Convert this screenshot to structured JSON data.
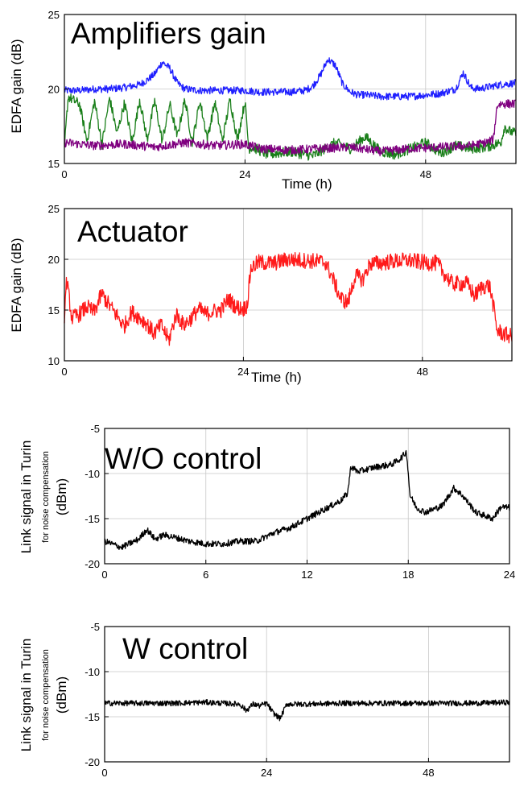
{
  "chart_data": [
    {
      "type": "line",
      "title": "Amplifiers gain",
      "xlabel": "Time (h)",
      "ylabel": "EDFA gain (dB)",
      "xlim": [
        0,
        60
      ],
      "ylim": [
        15,
        25
      ],
      "xticks": [
        0,
        24,
        48
      ],
      "yticks": [
        15,
        20,
        25
      ],
      "grid": true,
      "series": [
        {
          "color": "#1f1fff",
          "noise": 0.25,
          "x": [
            0,
            2,
            4,
            6,
            8,
            10,
            11,
            12,
            13,
            14,
            15,
            16,
            18,
            20,
            22,
            24,
            26,
            28,
            30,
            32,
            33,
            34,
            35,
            36,
            37,
            38,
            39,
            40,
            42,
            44,
            46,
            48,
            50,
            52,
            53,
            54,
            55,
            56,
            57,
            58,
            60
          ],
          "y": [
            19.9,
            19.9,
            20.0,
            20.0,
            20.1,
            20.3,
            20.6,
            21.0,
            21.8,
            21.4,
            20.4,
            20.0,
            19.9,
            19.9,
            19.9,
            19.9,
            19.8,
            19.8,
            19.8,
            19.9,
            20.2,
            20.9,
            22.0,
            21.6,
            20.3,
            19.8,
            19.6,
            19.6,
            19.5,
            19.5,
            19.5,
            19.6,
            19.7,
            20.0,
            21.1,
            20.1,
            20.0,
            20.1,
            20.2,
            20.3,
            20.4
          ]
        },
        {
          "color": "#1a7f1a",
          "noise": 0.35,
          "x": [
            0,
            0.5,
            1,
            2,
            3,
            4,
            5,
            6,
            7,
            8,
            9,
            10,
            11,
            12,
            13,
            14,
            15,
            16,
            17,
            18,
            19,
            20,
            21,
            22,
            23,
            24,
            24.5,
            25,
            27,
            30,
            33,
            36,
            38,
            40,
            42,
            44,
            46,
            48,
            50,
            52,
            54,
            56,
            58,
            58.5,
            59,
            60
          ],
          "y": [
            16.0,
            19.5,
            19.3,
            19.0,
            16.5,
            19.2,
            16.3,
            19.4,
            17.0,
            19.1,
            16.4,
            19.3,
            16.6,
            19.2,
            16.5,
            19.0,
            16.8,
            19.3,
            16.4,
            19.2,
            16.7,
            19.1,
            16.5,
            19.3,
            16.6,
            19.2,
            16.0,
            16.1,
            15.6,
            15.8,
            15.5,
            16.4,
            16.0,
            16.8,
            15.8,
            15.6,
            16.0,
            16.4,
            15.7,
            16.2,
            16.0,
            16.1,
            16.4,
            17.5,
            17.2,
            17.0
          ]
        },
        {
          "color": "#7f007f",
          "noise": 0.3,
          "x": [
            0,
            4,
            8,
            12,
            16,
            20,
            24,
            26,
            30,
            34,
            38,
            42,
            46,
            50,
            54,
            56,
            57,
            57.5,
            58,
            60
          ],
          "y": [
            16.4,
            16.2,
            16.3,
            16.1,
            16.4,
            16.2,
            16.3,
            16.0,
            15.9,
            16.0,
            16.1,
            15.8,
            16.0,
            16.1,
            16.2,
            16.4,
            16.6,
            18.9,
            19.0,
            19.0
          ]
        }
      ]
    },
    {
      "type": "line",
      "title": "Actuator",
      "xlabel": "Time (h)",
      "ylabel": "EDFA gain (dB)",
      "xlim": [
        0,
        60
      ],
      "ylim": [
        10,
        25
      ],
      "xticks": [
        0,
        24,
        48
      ],
      "yticks": [
        10,
        15,
        20,
        25
      ],
      "grid": true,
      "series": [
        {
          "color": "#ff1a1a",
          "noise": 0.8,
          "x": [
            0,
            0.3,
            1,
            2,
            3,
            4,
            5,
            6,
            7,
            8,
            9,
            10,
            11,
            12,
            13,
            14,
            15,
            16,
            17,
            18,
            19,
            20,
            21,
            22,
            23,
            24,
            24.5,
            25,
            26,
            28,
            30,
            32,
            34,
            35,
            36,
            37,
            38,
            39,
            40,
            41,
            42,
            44,
            46,
            48,
            50,
            51,
            52,
            54,
            55,
            56,
            57,
            57.5,
            58,
            59,
            60
          ],
          "y": [
            14.5,
            18.0,
            14.2,
            14.6,
            15.3,
            14.8,
            16.6,
            15.5,
            14.5,
            13.4,
            14.8,
            14.3,
            13.7,
            12.7,
            13.5,
            12.0,
            14.6,
            13.5,
            14.2,
            15.1,
            14.6,
            14.9,
            15.0,
            16.1,
            15.3,
            15.1,
            15.5,
            19.1,
            19.7,
            19.6,
            20.0,
            19.9,
            19.8,
            19.7,
            18.1,
            16.2,
            15.7,
            18.4,
            18.0,
            19.6,
            19.6,
            19.8,
            19.9,
            19.7,
            19.6,
            18.5,
            17.6,
            17.6,
            16.4,
            17.3,
            17.4,
            15.5,
            13.0,
            12.6,
            12.4
          ]
        }
      ]
    },
    {
      "type": "line",
      "title": "W/O control",
      "xlabel": "",
      "ylabel": "Link signal in Turin",
      "ylabel_sub": "for noise compensation",
      "ylabel_unit": "(dBm)",
      "xlim": [
        0,
        24
      ],
      "ylim": [
        -20,
        -5
      ],
      "xticks": [
        0,
        6,
        12,
        18,
        24
      ],
      "yticks": [
        -5,
        -10,
        -15,
        -20
      ],
      "grid": true,
      "series": [
        {
          "color": "#000000",
          "noise": 0.35,
          "x": [
            0,
            1,
            2,
            2.5,
            3,
            3.5,
            4,
            5,
            6,
            7,
            8,
            9,
            10,
            11,
            12,
            13,
            14,
            14.4,
            14.6,
            15,
            16,
            17,
            17.5,
            17.9,
            18.1,
            18.5,
            19,
            20,
            20.7,
            21.2,
            22,
            23,
            23.5,
            24
          ],
          "y": [
            -17.5,
            -18.2,
            -17.3,
            -16.2,
            -17.3,
            -16.8,
            -17.0,
            -17.5,
            -17.8,
            -17.8,
            -17.5,
            -17.5,
            -16.6,
            -16.0,
            -15.0,
            -14.0,
            -13.0,
            -12.2,
            -9.2,
            -9.8,
            -9.3,
            -9.0,
            -8.4,
            -7.6,
            -12.4,
            -13.8,
            -14.3,
            -13.6,
            -11.6,
            -12.4,
            -14.3,
            -15.0,
            -13.7,
            -13.8
          ]
        }
      ]
    },
    {
      "type": "line",
      "title": "W control",
      "xlabel": "",
      "ylabel": "Link signal in Turin",
      "ylabel_sub": "for noise compensation",
      "ylabel_unit": "(dBm)",
      "xlim": [
        0,
        60
      ],
      "ylim": [
        -20,
        -5
      ],
      "xticks": [
        0,
        24,
        48
      ],
      "yticks": [
        -5,
        -10,
        -15,
        -20
      ],
      "grid": true,
      "series": [
        {
          "color": "#000000",
          "noise": 0.3,
          "x": [
            0,
            5,
            10,
            15,
            20,
            21,
            22,
            23,
            24,
            25,
            26,
            27,
            30,
            35,
            40,
            45,
            50,
            55,
            60
          ],
          "y": [
            -13.5,
            -13.5,
            -13.5,
            -13.4,
            -13.6,
            -14.3,
            -13.6,
            -13.8,
            -13.5,
            -14.6,
            -15.2,
            -13.6,
            -13.6,
            -13.5,
            -13.5,
            -13.5,
            -13.5,
            -13.5,
            -13.4
          ]
        }
      ]
    }
  ]
}
